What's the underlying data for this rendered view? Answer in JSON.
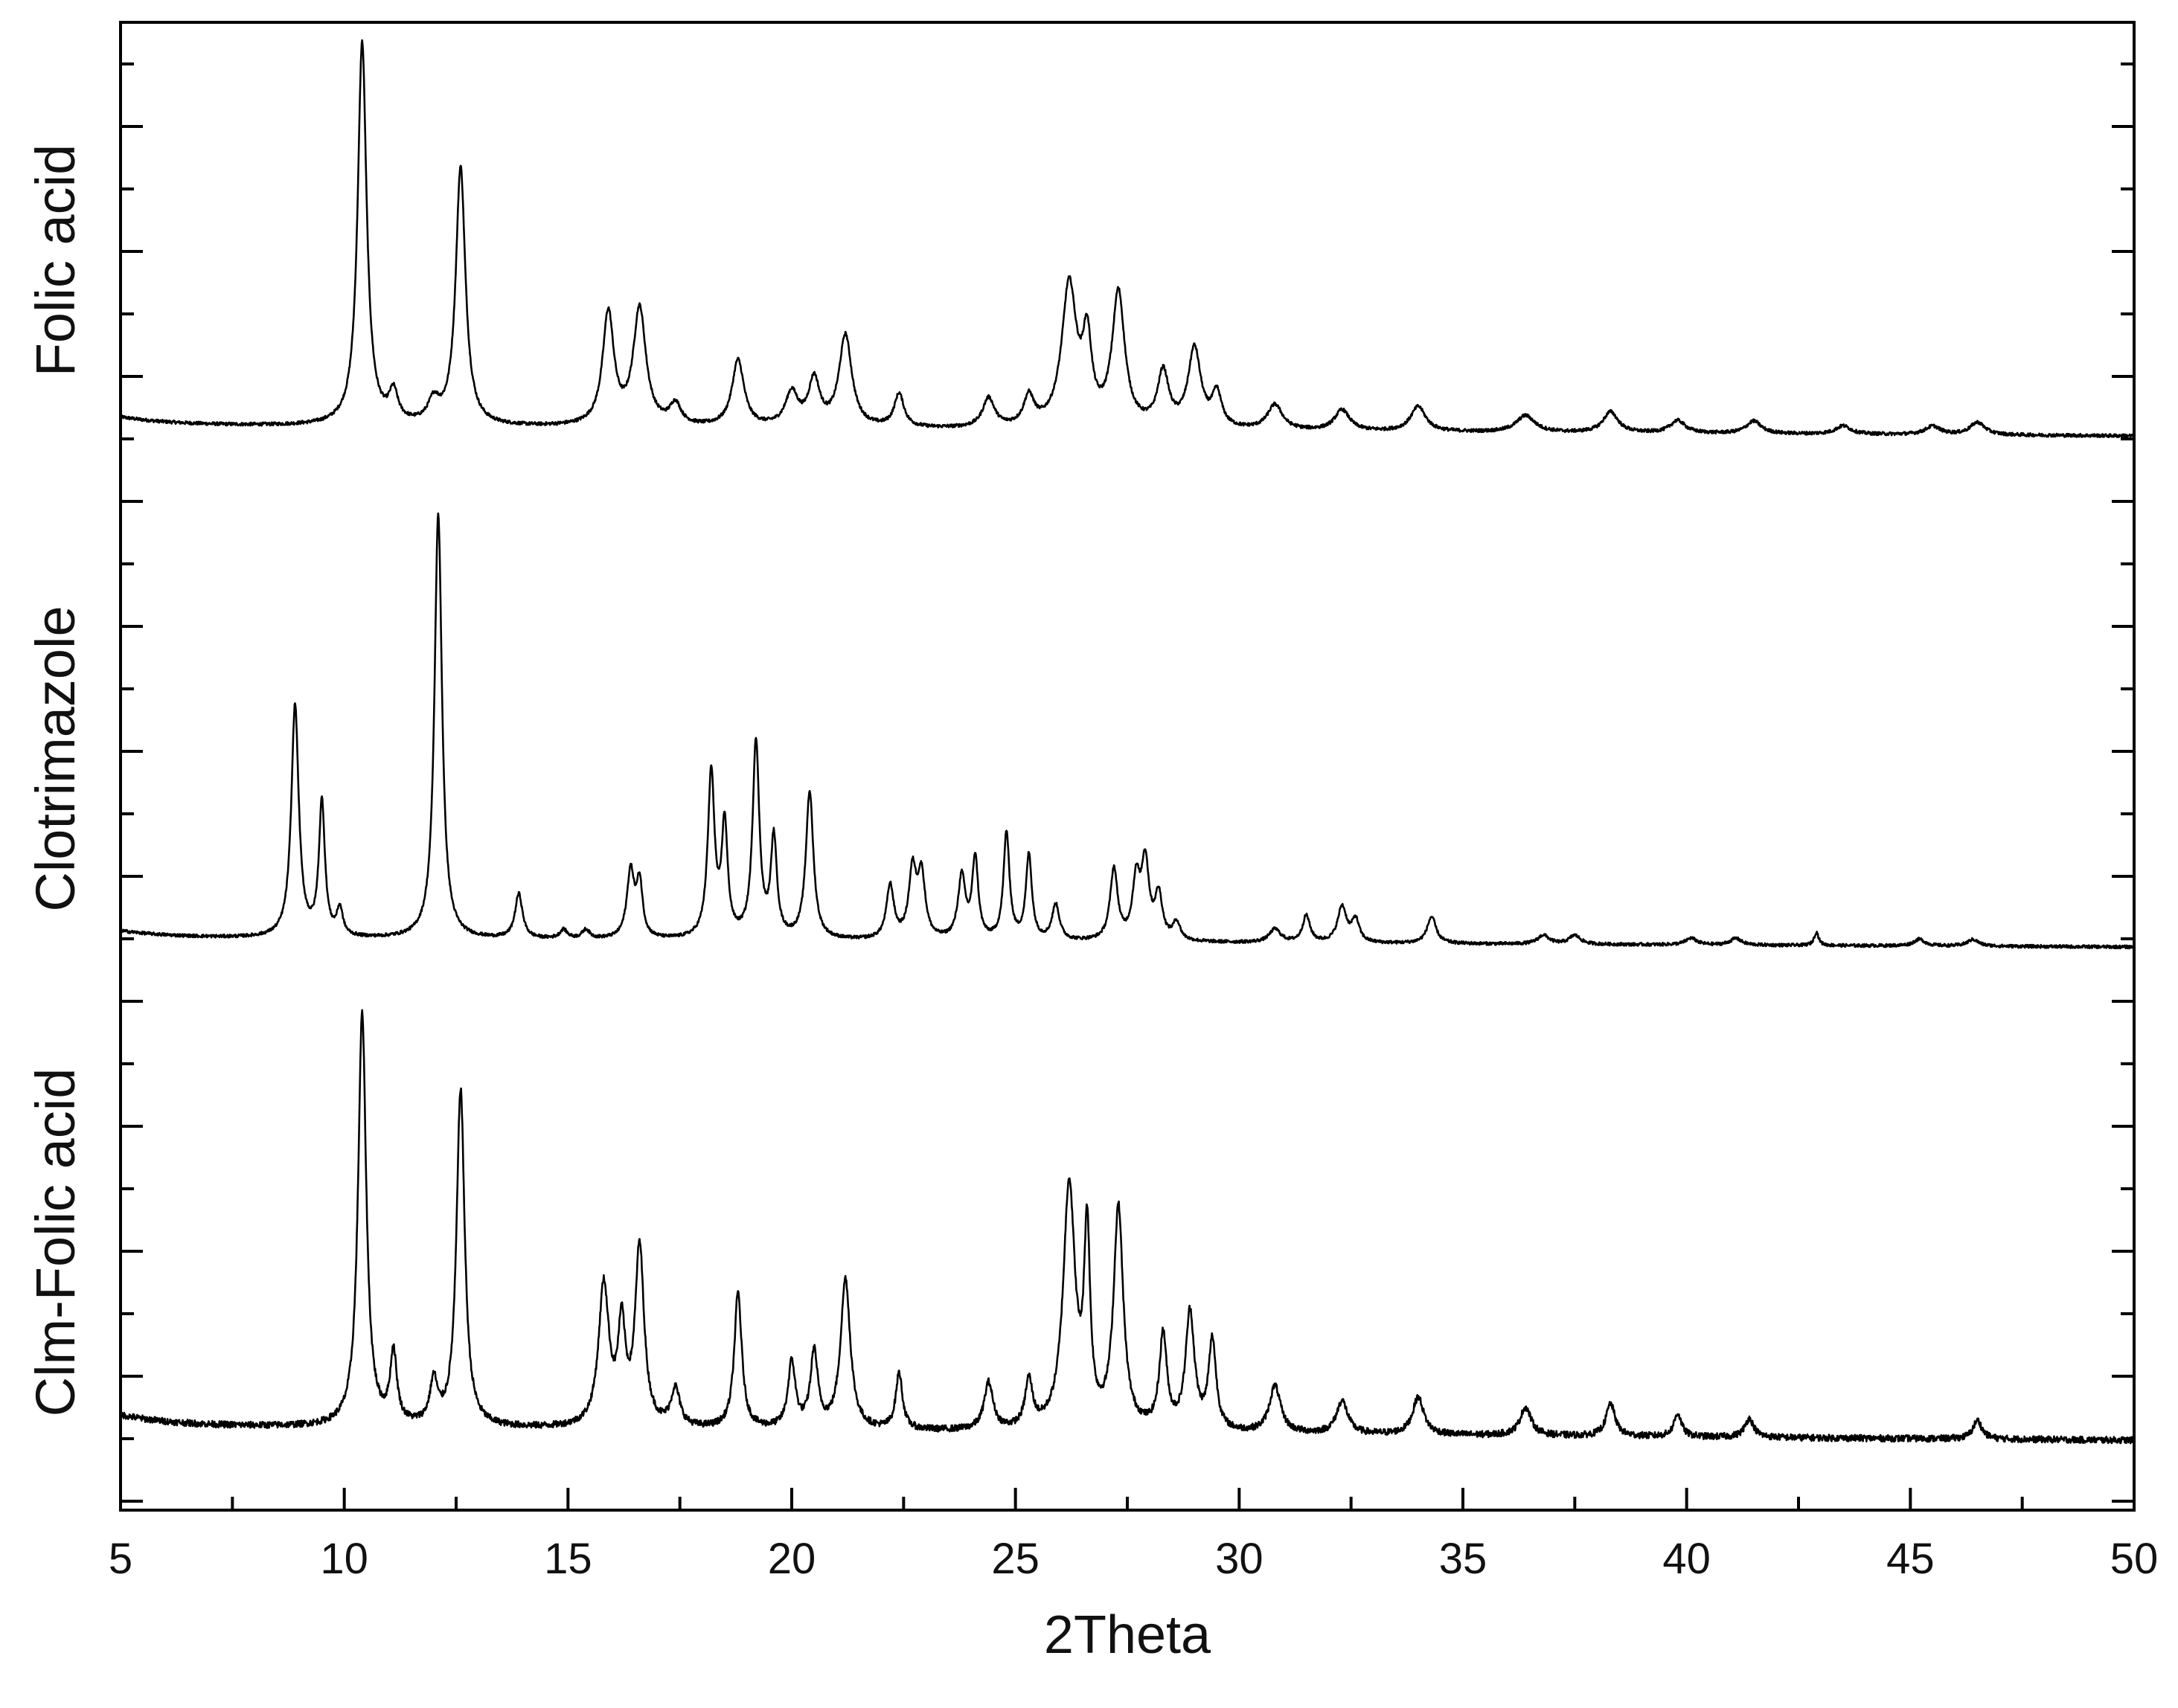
{
  "chart_data": {
    "type": "line",
    "title": "",
    "xlabel": "2Theta",
    "ylabel": "",
    "xlim": [
      5,
      50
    ],
    "xticks": [
      5,
      10,
      15,
      20,
      25,
      30,
      35,
      40,
      45,
      50
    ],
    "grid": false,
    "legend": "none",
    "stacked_offset": true,
    "line_color": "#000000",
    "series": [
      {
        "name": "Folic acid",
        "baseline": 0.05,
        "noise": 0.004,
        "peaks": [
          {
            "x": 10.4,
            "h": 0.92,
            "w": 0.12
          },
          {
            "x": 11.1,
            "h": 0.07,
            "w": 0.12
          },
          {
            "x": 12.0,
            "h": 0.05,
            "w": 0.15
          },
          {
            "x": 12.6,
            "h": 0.62,
            "w": 0.13
          },
          {
            "x": 15.9,
            "h": 0.27,
            "w": 0.15
          },
          {
            "x": 16.6,
            "h": 0.28,
            "w": 0.17
          },
          {
            "x": 17.4,
            "h": 0.05,
            "w": 0.15
          },
          {
            "x": 18.8,
            "h": 0.16,
            "w": 0.16
          },
          {
            "x": 20.0,
            "h": 0.08,
            "w": 0.17
          },
          {
            "x": 20.5,
            "h": 0.11,
            "w": 0.15
          },
          {
            "x": 21.2,
            "h": 0.22,
            "w": 0.17
          },
          {
            "x": 22.4,
            "h": 0.08,
            "w": 0.13
          },
          {
            "x": 24.4,
            "h": 0.07,
            "w": 0.16
          },
          {
            "x": 25.3,
            "h": 0.07,
            "w": 0.14
          },
          {
            "x": 26.2,
            "h": 0.34,
            "w": 0.2
          },
          {
            "x": 26.6,
            "h": 0.19,
            "w": 0.12
          },
          {
            "x": 27.3,
            "h": 0.32,
            "w": 0.17
          },
          {
            "x": 28.3,
            "h": 0.13,
            "w": 0.15
          },
          {
            "x": 29.0,
            "h": 0.19,
            "w": 0.17
          },
          {
            "x": 29.5,
            "h": 0.08,
            "w": 0.13
          },
          {
            "x": 30.8,
            "h": 0.06,
            "w": 0.2
          },
          {
            "x": 32.3,
            "h": 0.05,
            "w": 0.2
          },
          {
            "x": 34.0,
            "h": 0.06,
            "w": 0.2
          },
          {
            "x": 36.4,
            "h": 0.04,
            "w": 0.25
          },
          {
            "x": 38.3,
            "h": 0.05,
            "w": 0.2
          },
          {
            "x": 39.8,
            "h": 0.03,
            "w": 0.2
          },
          {
            "x": 41.5,
            "h": 0.03,
            "w": 0.2
          },
          {
            "x": 43.5,
            "h": 0.02,
            "w": 0.2
          },
          {
            "x": 45.5,
            "h": 0.02,
            "w": 0.2
          },
          {
            "x": 46.5,
            "h": 0.03,
            "w": 0.2
          }
        ]
      },
      {
        "name": "Clotrimazole",
        "baseline": 0.04,
        "noise": 0.0035,
        "peaks": [
          {
            "x": 8.9,
            "h": 0.52,
            "w": 0.1
          },
          {
            "x": 9.5,
            "h": 0.3,
            "w": 0.08
          },
          {
            "x": 9.9,
            "h": 0.06,
            "w": 0.08
          },
          {
            "x": 12.1,
            "h": 0.95,
            "w": 0.1
          },
          {
            "x": 13.9,
            "h": 0.1,
            "w": 0.1
          },
          {
            "x": 14.9,
            "h": 0.02,
            "w": 0.1
          },
          {
            "x": 15.4,
            "h": 0.02,
            "w": 0.1
          },
          {
            "x": 16.4,
            "h": 0.15,
            "w": 0.1
          },
          {
            "x": 16.6,
            "h": 0.12,
            "w": 0.08
          },
          {
            "x": 18.2,
            "h": 0.37,
            "w": 0.09
          },
          {
            "x": 18.5,
            "h": 0.25,
            "w": 0.08
          },
          {
            "x": 19.2,
            "h": 0.44,
            "w": 0.09
          },
          {
            "x": 19.6,
            "h": 0.22,
            "w": 0.08
          },
          {
            "x": 20.4,
            "h": 0.33,
            "w": 0.1
          },
          {
            "x": 22.2,
            "h": 0.12,
            "w": 0.1
          },
          {
            "x": 22.7,
            "h": 0.15,
            "w": 0.1
          },
          {
            "x": 22.9,
            "h": 0.14,
            "w": 0.1
          },
          {
            "x": 23.8,
            "h": 0.14,
            "w": 0.1
          },
          {
            "x": 24.1,
            "h": 0.18,
            "w": 0.08
          },
          {
            "x": 24.8,
            "h": 0.24,
            "w": 0.08
          },
          {
            "x": 25.3,
            "h": 0.19,
            "w": 0.08
          },
          {
            "x": 25.9,
            "h": 0.08,
            "w": 0.1
          },
          {
            "x": 27.2,
            "h": 0.16,
            "w": 0.1
          },
          {
            "x": 27.7,
            "h": 0.13,
            "w": 0.1
          },
          {
            "x": 27.9,
            "h": 0.17,
            "w": 0.1
          },
          {
            "x": 28.2,
            "h": 0.1,
            "w": 0.1
          },
          {
            "x": 28.6,
            "h": 0.04,
            "w": 0.1
          },
          {
            "x": 30.8,
            "h": 0.03,
            "w": 0.15
          },
          {
            "x": 31.5,
            "h": 0.06,
            "w": 0.1
          },
          {
            "x": 32.3,
            "h": 0.08,
            "w": 0.12
          },
          {
            "x": 32.6,
            "h": 0.05,
            "w": 0.1
          },
          {
            "x": 34.3,
            "h": 0.06,
            "w": 0.12
          },
          {
            "x": 36.8,
            "h": 0.02,
            "w": 0.15
          },
          {
            "x": 37.5,
            "h": 0.02,
            "w": 0.15
          },
          {
            "x": 40.1,
            "h": 0.015,
            "w": 0.15
          },
          {
            "x": 41.1,
            "h": 0.015,
            "w": 0.15
          },
          {
            "x": 42.9,
            "h": 0.03,
            "w": 0.06
          },
          {
            "x": 45.2,
            "h": 0.015,
            "w": 0.15
          },
          {
            "x": 46.4,
            "h": 0.015,
            "w": 0.15
          }
        ]
      },
      {
        "name": "Clm-Folic acid",
        "baseline": 0.06,
        "noise": 0.007,
        "peaks": [
          {
            "x": 10.4,
            "h": 0.88,
            "w": 0.11
          },
          {
            "x": 11.1,
            "h": 0.15,
            "w": 0.09
          },
          {
            "x": 12.0,
            "h": 0.09,
            "w": 0.1
          },
          {
            "x": 12.6,
            "h": 0.72,
            "w": 0.11
          },
          {
            "x": 15.8,
            "h": 0.3,
            "w": 0.14
          },
          {
            "x": 16.2,
            "h": 0.2,
            "w": 0.1
          },
          {
            "x": 16.6,
            "h": 0.38,
            "w": 0.12
          },
          {
            "x": 17.4,
            "h": 0.08,
            "w": 0.12
          },
          {
            "x": 18.8,
            "h": 0.29,
            "w": 0.1
          },
          {
            "x": 20.0,
            "h": 0.14,
            "w": 0.1
          },
          {
            "x": 20.5,
            "h": 0.16,
            "w": 0.1
          },
          {
            "x": 21.2,
            "h": 0.32,
            "w": 0.13
          },
          {
            "x": 22.4,
            "h": 0.12,
            "w": 0.09
          },
          {
            "x": 24.4,
            "h": 0.1,
            "w": 0.12
          },
          {
            "x": 25.3,
            "h": 0.1,
            "w": 0.1
          },
          {
            "x": 26.2,
            "h": 0.52,
            "w": 0.16
          },
          {
            "x": 26.6,
            "h": 0.4,
            "w": 0.08
          },
          {
            "x": 27.3,
            "h": 0.47,
            "w": 0.13
          },
          {
            "x": 28.3,
            "h": 0.2,
            "w": 0.1
          },
          {
            "x": 28.9,
            "h": 0.25,
            "w": 0.12
          },
          {
            "x": 29.4,
            "h": 0.19,
            "w": 0.1
          },
          {
            "x": 30.8,
            "h": 0.1,
            "w": 0.15
          },
          {
            "x": 32.3,
            "h": 0.07,
            "w": 0.15
          },
          {
            "x": 34.0,
            "h": 0.08,
            "w": 0.15
          },
          {
            "x": 36.4,
            "h": 0.06,
            "w": 0.15
          },
          {
            "x": 38.3,
            "h": 0.07,
            "w": 0.12
          },
          {
            "x": 39.8,
            "h": 0.05,
            "w": 0.1
          },
          {
            "x": 41.4,
            "h": 0.04,
            "w": 0.12
          },
          {
            "x": 46.5,
            "h": 0.04,
            "w": 0.12
          }
        ]
      }
    ]
  }
}
